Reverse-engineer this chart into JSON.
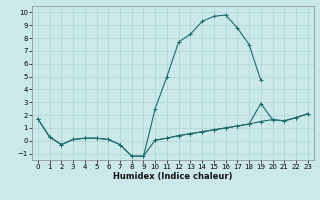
{
  "title": "",
  "xlabel": "Humidex (Indice chaleur)",
  "xlim": [
    -0.5,
    23.5
  ],
  "ylim": [
    -1.5,
    10.5
  ],
  "xticks": [
    0,
    1,
    2,
    3,
    4,
    5,
    6,
    7,
    8,
    9,
    10,
    11,
    12,
    13,
    14,
    15,
    16,
    17,
    18,
    19,
    20,
    21,
    22,
    23
  ],
  "yticks": [
    -1,
    0,
    1,
    2,
    3,
    4,
    5,
    6,
    7,
    8,
    9,
    10
  ],
  "background_color": "#cce9e9",
  "grid_color": "#b0d4d4",
  "line_color": "#1a6b6b",
  "line1_x": [
    0,
    1,
    2,
    3,
    4,
    5,
    6,
    7,
    8,
    9,
    10,
    11,
    12,
    13,
    14,
    15,
    16,
    17,
    18,
    19
  ],
  "line1_y": [
    1.7,
    0.3,
    -0.3,
    0.1,
    0.2,
    0.2,
    0.1,
    -0.3,
    -1.2,
    -1.2,
    2.5,
    5.0,
    7.7,
    8.3,
    9.3,
    9.7,
    9.8,
    8.8,
    7.5,
    4.7
  ],
  "line2_x": [
    0,
    1,
    2,
    3,
    4,
    5,
    6,
    7,
    8,
    9,
    10,
    11,
    12,
    13,
    14,
    15,
    16,
    17,
    18,
    19,
    20,
    21,
    22,
    23
  ],
  "line2_y": [
    1.7,
    0.3,
    -0.3,
    0.1,
    0.2,
    0.2,
    0.1,
    -0.3,
    -1.2,
    -1.2,
    0.05,
    0.2,
    0.4,
    0.55,
    0.7,
    0.85,
    1.0,
    1.15,
    1.3,
    1.5,
    1.65,
    1.55,
    1.8,
    2.1
  ],
  "line3_x": [
    10,
    11,
    12,
    13,
    14,
    15,
    16,
    17,
    18,
    19,
    20,
    21,
    22,
    23
  ],
  "line3_y": [
    0.05,
    0.2,
    0.4,
    0.55,
    0.7,
    0.85,
    1.0,
    1.15,
    1.3,
    2.9,
    1.65,
    1.55,
    1.8,
    2.1
  ],
  "tick_fontsize": 5,
  "xlabel_fontsize": 6,
  "linewidth": 0.8,
  "markersize": 3
}
